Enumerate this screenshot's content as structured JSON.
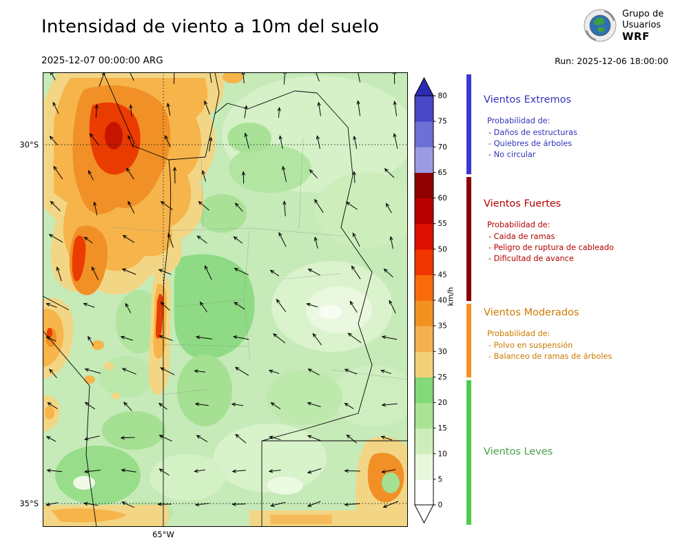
{
  "header": {
    "title": "Intensidad de viento a 10m del suelo",
    "valid_datetime": "2025-12-07 00:00:00 ARG",
    "run_label": "Run: 2025-12-06 18:00:00",
    "logo": {
      "line1": "Grupo de",
      "line2": "Usuarios",
      "line3": "WRF"
    }
  },
  "map_axes": {
    "lat_top": "30°S",
    "lat_bottom": "35°S",
    "lon": "65°W"
  },
  "colorbar": {
    "unit": "km/h",
    "ticks": [
      "0",
      "5",
      "10",
      "15",
      "20",
      "25",
      "30",
      "35",
      "40",
      "45",
      "50",
      "55",
      "60",
      "65",
      "70",
      "75",
      "80"
    ],
    "colors": [
      "#ffffff",
      "#e6f7dc",
      "#cdeebb",
      "#a9e393",
      "#83d878",
      "#f0d078",
      "#f4b04e",
      "#f39120",
      "#f96a0d",
      "#f03500",
      "#dc1000",
      "#b80000",
      "#8f0000",
      "#9b9be4",
      "#6f6fd8",
      "#4848c8"
    ],
    "over_color": "#2a2ab4",
    "under_color": "#ffffff"
  },
  "legend": {
    "sections": [
      {
        "title": "Vientos Extremos",
        "subtitle": "Probabilidad de:",
        "items": [
          "- Daños de estructuras",
          "- Quiebres de árboles",
          "- No circular"
        ],
        "color": "#3333bb",
        "strip_color": "#3a3ad0"
      },
      {
        "title": "Vientos Fuertes",
        "subtitle": "Probabilidad de:",
        "items": [
          "- Caida de ramas",
          "- Peligro de ruptura de cableado",
          "- Dificultad de avance"
        ],
        "color": "#b30000",
        "strip_color": "#8b0000"
      },
      {
        "title": "Vientos Moderados",
        "subtitle": "Probabilidad de:",
        "items": [
          "- Polvo en suspensión",
          "- Balanceo de ramas de árboles"
        ],
        "color": "#cc7a00",
        "strip_color": "#f59120"
      },
      {
        "title": "Vientos Leves",
        "subtitle": "",
        "items": [],
        "color": "#4a9e4a",
        "strip_color": "#4ecb4e"
      }
    ]
  },
  "chart_data": {
    "type": "heatmap",
    "title": "Intensidad de viento a 10m del suelo",
    "valid_time": "2025-12-07 00:00:00 ARG",
    "run_time": "2025-12-06 18:00:00",
    "unit": "km/h",
    "colorbar_range": [
      0,
      80
    ],
    "colorbar_ticks": [
      0,
      5,
      10,
      15,
      20,
      25,
      30,
      35,
      40,
      45,
      50,
      55,
      60,
      65,
      70,
      75,
      80
    ],
    "wind_categories": [
      {
        "name": "Vientos Leves",
        "range_kmh": [
          0,
          25
        ]
      },
      {
        "name": "Vientos Moderados",
        "range_kmh": [
          25,
          40
        ]
      },
      {
        "name": "Vientos Fuertes",
        "range_kmh": [
          40,
          65
        ]
      },
      {
        "name": "Vientos Extremos",
        "range_kmh": [
          65,
          80
        ]
      }
    ],
    "lat_gridlines": [
      "30°S",
      "35°S"
    ],
    "lon_gridlines": [
      "65°W"
    ],
    "overlay": "wind direction arrows"
  }
}
